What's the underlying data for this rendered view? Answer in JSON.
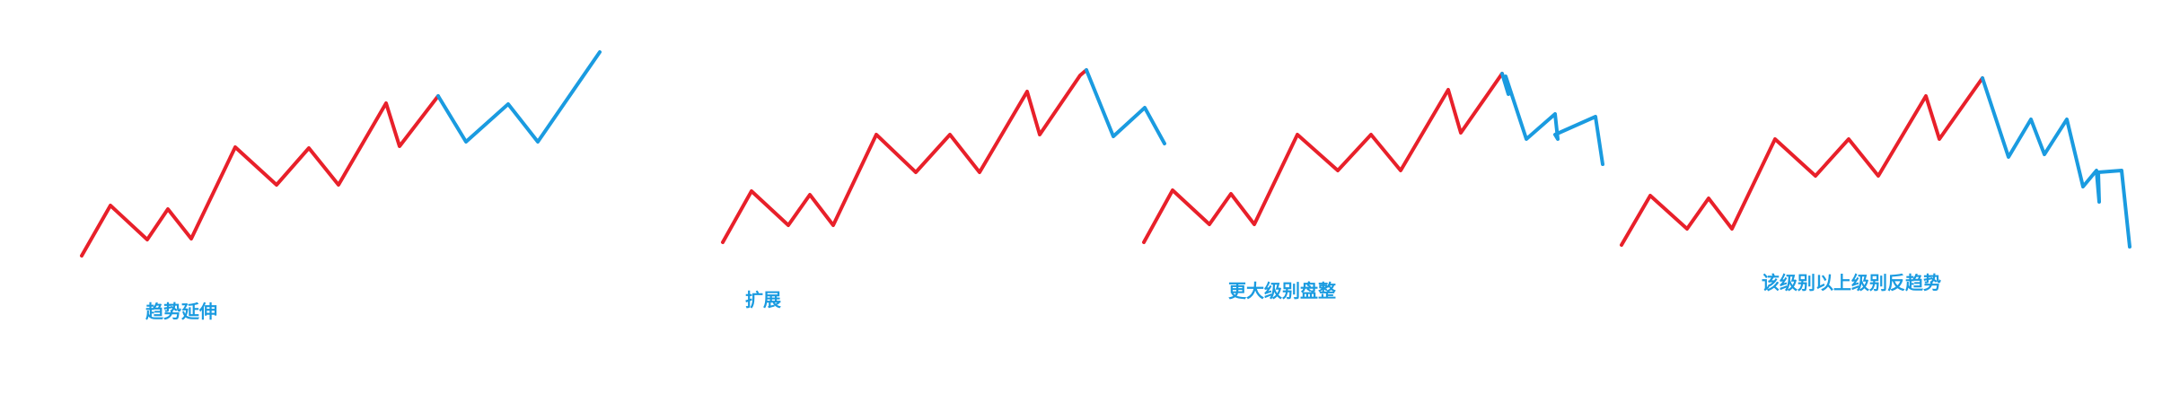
{
  "colors": {
    "trend": "#e8202a",
    "continuation": "#1a9be0",
    "label": "#1a9be0"
  },
  "panels": [
    {
      "caption": "趋势延伸"
    },
    {
      "caption": "扩展"
    },
    {
      "caption": "更大级别盘整"
    },
    {
      "caption": "该级别以上级别反趋势"
    }
  ]
}
